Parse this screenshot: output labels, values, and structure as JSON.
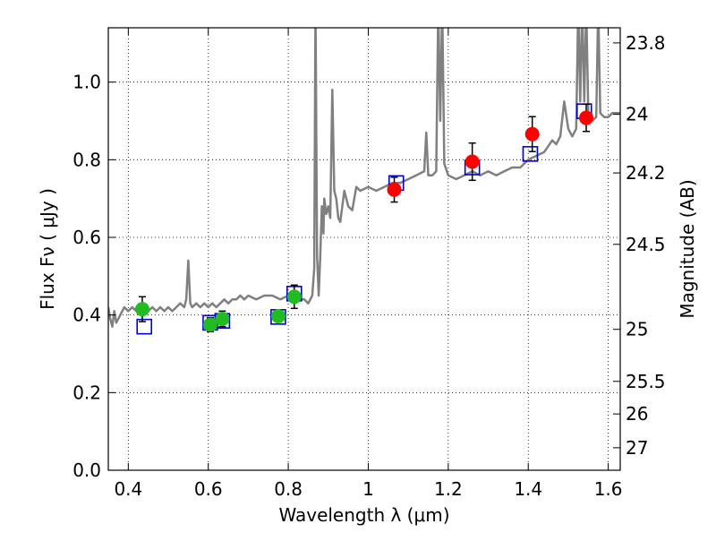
{
  "chart_data": {
    "type": "scatter",
    "xlabel": "Wavelength  λ (μm)",
    "ylabel": "Flux  Fν  ( μJy )",
    "ylabel_right": "Magnitude (AB)",
    "xlim": [
      0.35,
      1.63
    ],
    "ylim": [
      0.0,
      1.14
    ],
    "x_ticks": [
      0.4,
      0.6,
      0.8,
      1.0,
      1.2,
      1.4,
      1.6
    ],
    "x_tick_labels": [
      "0.4",
      "0.6",
      "0.8",
      "1",
      "1.2",
      "1.4",
      "1.6"
    ],
    "y_ticks": [
      0.0,
      0.2,
      0.4,
      0.6,
      0.8,
      1.0
    ],
    "y_tick_labels": [
      "0.0",
      "0.2",
      "0.4",
      "0.6",
      "0.8",
      "1.0"
    ],
    "right_axis": {
      "ticks": [
        {
          "flux": 1.101,
          "label": "23.8"
        },
        {
          "flux": 0.917,
          "label": "24"
        },
        {
          "flux": 0.766,
          "label": "24.2"
        },
        {
          "flux": 0.582,
          "label": "24.5"
        },
        {
          "flux": 0.363,
          "label": "25"
        },
        {
          "flux": 0.229,
          "label": "25.5"
        },
        {
          "flux": 0.145,
          "label": "26"
        },
        {
          "flux": 0.058,
          "label": "27"
        }
      ]
    },
    "grid": true,
    "colors": {
      "model_line": "#808080",
      "optical_points": "#22bb22",
      "nir_points": "#ff0000",
      "model_squares": "#0000dd",
      "errorbars": "#000000"
    },
    "series": [
      {
        "kind": "line",
        "color": "#808080",
        "points": [
          [
            0.35,
            0.42
          ],
          [
            0.355,
            0.39
          ],
          [
            0.36,
            0.37
          ],
          [
            0.365,
            0.41
          ],
          [
            0.37,
            0.38
          ],
          [
            0.38,
            0.4
          ],
          [
            0.39,
            0.42
          ],
          [
            0.4,
            0.41
          ],
          [
            0.41,
            0.42
          ],
          [
            0.42,
            0.41
          ],
          [
            0.43,
            0.4
          ],
          [
            0.44,
            0.42
          ],
          [
            0.45,
            0.41
          ],
          [
            0.46,
            0.42
          ],
          [
            0.47,
            0.41
          ],
          [
            0.48,
            0.42
          ],
          [
            0.49,
            0.41
          ],
          [
            0.5,
            0.42
          ],
          [
            0.51,
            0.41
          ],
          [
            0.52,
            0.42
          ],
          [
            0.53,
            0.43
          ],
          [
            0.54,
            0.42
          ],
          [
            0.545,
            0.44
          ],
          [
            0.55,
            0.54
          ],
          [
            0.555,
            0.43
          ],
          [
            0.56,
            0.42
          ],
          [
            0.57,
            0.43
          ],
          [
            0.58,
            0.42
          ],
          [
            0.59,
            0.43
          ],
          [
            0.6,
            0.42
          ],
          [
            0.61,
            0.43
          ],
          [
            0.62,
            0.42
          ],
          [
            0.63,
            0.43
          ],
          [
            0.64,
            0.44
          ],
          [
            0.65,
            0.43
          ],
          [
            0.66,
            0.44
          ],
          [
            0.67,
            0.44
          ],
          [
            0.68,
            0.45
          ],
          [
            0.69,
            0.44
          ],
          [
            0.7,
            0.45
          ],
          [
            0.72,
            0.44
          ],
          [
            0.74,
            0.45
          ],
          [
            0.76,
            0.45
          ],
          [
            0.78,
            0.44
          ],
          [
            0.8,
            0.45
          ],
          [
            0.82,
            0.44
          ],
          [
            0.84,
            0.44
          ],
          [
            0.85,
            0.43
          ],
          [
            0.86,
            0.45
          ],
          [
            0.865,
            0.52
          ],
          [
            0.868,
            1.2
          ],
          [
            0.872,
            0.55
          ],
          [
            0.876,
            0.45
          ],
          [
            0.88,
            0.55
          ],
          [
            0.884,
            0.68
          ],
          [
            0.888,
            0.61
          ],
          [
            0.89,
            0.7
          ],
          [
            0.895,
            0.66
          ],
          [
            0.9,
            0.68
          ],
          [
            0.905,
            0.65
          ],
          [
            0.91,
            0.98
          ],
          [
            0.915,
            0.72
          ],
          [
            0.92,
            0.7
          ],
          [
            0.925,
            0.65
          ],
          [
            0.93,
            0.64
          ],
          [
            0.94,
            0.72
          ],
          [
            0.95,
            0.68
          ],
          [
            0.96,
            0.67
          ],
          [
            0.97,
            0.73
          ],
          [
            0.98,
            0.72
          ],
          [
            1.0,
            0.73
          ],
          [
            1.02,
            0.72
          ],
          [
            1.04,
            0.73
          ],
          [
            1.06,
            0.74
          ],
          [
            1.08,
            0.74
          ],
          [
            1.1,
            0.75
          ],
          [
            1.12,
            0.76
          ],
          [
            1.14,
            0.77
          ],
          [
            1.145,
            0.87
          ],
          [
            1.15,
            0.76
          ],
          [
            1.16,
            0.76
          ],
          [
            1.17,
            0.77
          ],
          [
            1.175,
            1.2
          ],
          [
            1.18,
            0.9
          ],
          [
            1.185,
            1.2
          ],
          [
            1.19,
            0.79
          ],
          [
            1.2,
            0.76
          ],
          [
            1.22,
            0.75
          ],
          [
            1.24,
            0.76
          ],
          [
            1.26,
            0.77
          ],
          [
            1.28,
            0.76
          ],
          [
            1.3,
            0.77
          ],
          [
            1.32,
            0.76
          ],
          [
            1.34,
            0.77
          ],
          [
            1.36,
            0.78
          ],
          [
            1.38,
            0.78
          ],
          [
            1.4,
            0.8
          ],
          [
            1.42,
            0.81
          ],
          [
            1.44,
            0.82
          ],
          [
            1.46,
            0.85
          ],
          [
            1.47,
            0.84
          ],
          [
            1.48,
            0.86
          ],
          [
            1.49,
            0.95
          ],
          [
            1.5,
            0.88
          ],
          [
            1.51,
            0.86
          ],
          [
            1.52,
            0.88
          ],
          [
            1.525,
            1.2
          ],
          [
            1.53,
            0.95
          ],
          [
            1.535,
            1.2
          ],
          [
            1.54,
            0.95
          ],
          [
            1.545,
            1.2
          ],
          [
            1.55,
            0.92
          ],
          [
            1.56,
            0.9
          ],
          [
            1.57,
            0.91
          ],
          [
            1.575,
            1.2
          ],
          [
            1.58,
            0.92
          ],
          [
            1.59,
            0.91
          ],
          [
            1.6,
            0.91
          ],
          [
            1.61,
            0.92
          ],
          [
            1.63,
            0.92
          ]
        ]
      },
      {
        "kind": "points",
        "marker": "circle",
        "color": "#22bb22",
        "x": [
          0.435,
          0.605,
          0.635,
          0.775,
          0.815
        ],
        "y": [
          0.415,
          0.375,
          0.39,
          0.397,
          0.447
        ],
        "yerr": [
          0.032,
          0.018,
          0.02,
          0.015,
          0.03
        ]
      },
      {
        "kind": "points",
        "marker": "circle",
        "color": "#ff0000",
        "x": [
          1.065,
          1.26,
          1.41,
          1.545
        ],
        "y": [
          0.723,
          0.795,
          0.866,
          0.908
        ],
        "yerr": [
          0.032,
          0.048,
          0.045,
          0.035
        ]
      },
      {
        "kind": "points",
        "marker": "square",
        "color": "#0000dd",
        "x": [
          0.44,
          0.605,
          0.635,
          0.775,
          0.815,
          1.07,
          1.26,
          1.405,
          1.54
        ],
        "y": [
          0.37,
          0.38,
          0.385,
          0.395,
          0.455,
          0.74,
          0.78,
          0.815,
          0.925
        ]
      }
    ]
  }
}
